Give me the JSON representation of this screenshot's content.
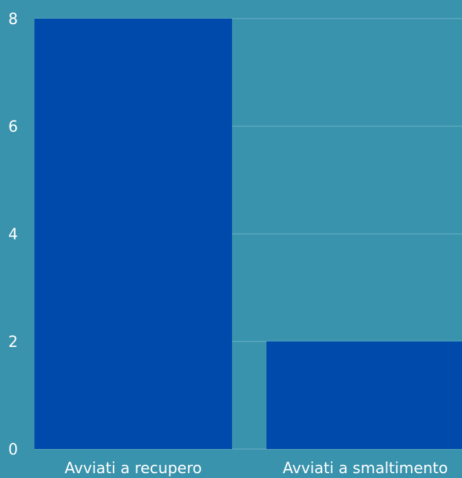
{
  "colors": {
    "background": "#3993ad",
    "bar": "#004aab",
    "gridline": "#6fb3c7",
    "text": "#ffffff"
  },
  "chart_data": {
    "type": "bar",
    "categories": [
      "Avviati a recupero",
      "Avviati a smaltimento"
    ],
    "values": [
      8,
      2
    ],
    "ylim": [
      0,
      8
    ],
    "yticks": [
      0,
      2,
      4,
      6,
      8
    ],
    "grid": true,
    "legend": "none"
  }
}
